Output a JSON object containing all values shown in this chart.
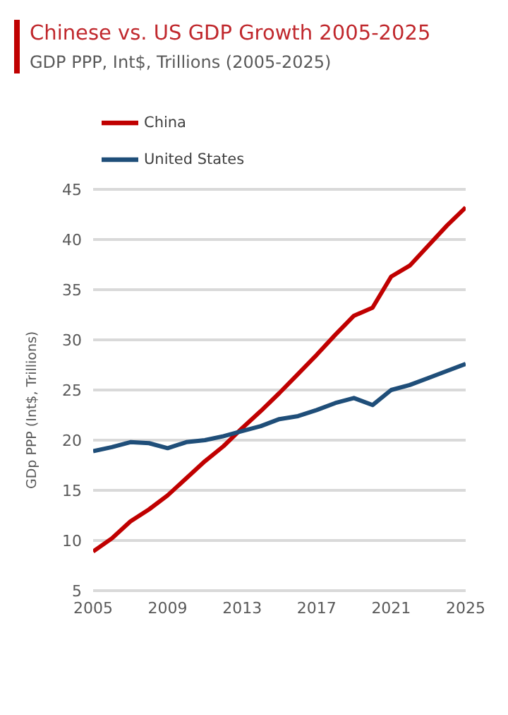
{
  "chart_data": {
    "type": "line",
    "title": "Chinese vs. US GDP Growth 2005-2025",
    "subtitle": "GDP PPP, Int$, Trillions (2005-2025)",
    "ylabel": "GDp PPP (Int$, Trillions)",
    "x": [
      2005,
      2006,
      2007,
      2008,
      2009,
      2010,
      2011,
      2012,
      2013,
      2014,
      2015,
      2016,
      2017,
      2018,
      2019,
      2020,
      2021,
      2022,
      2023,
      2024,
      2025
    ],
    "series": [
      {
        "name": "China",
        "color": "#c00000",
        "values": [
          8.9,
          10.2,
          11.9,
          13.1,
          14.5,
          16.2,
          17.9,
          19.4,
          21.2,
          22.9,
          24.7,
          26.6,
          28.5,
          30.5,
          32.4,
          33.2,
          36.3,
          37.4,
          39.4,
          41.4,
          43.2
        ]
      },
      {
        "name": "United States",
        "color": "#1f4e79",
        "values": [
          18.9,
          19.3,
          19.8,
          19.7,
          19.2,
          19.8,
          20.0,
          20.4,
          20.9,
          21.4,
          22.1,
          22.4,
          23.0,
          23.7,
          24.2,
          23.5,
          25.0,
          25.5,
          26.2,
          26.9,
          27.6
        ]
      }
    ],
    "xlim": [
      2005,
      2025
    ],
    "xticks": [
      2005,
      2009,
      2013,
      2017,
      2021,
      2025
    ],
    "ylim": [
      5,
      45
    ],
    "yticks": [
      5,
      10,
      15,
      20,
      25,
      30,
      35,
      40,
      45
    ],
    "grid": "y",
    "legend": "top left",
    "marker": "none",
    "line_style": "solid"
  }
}
